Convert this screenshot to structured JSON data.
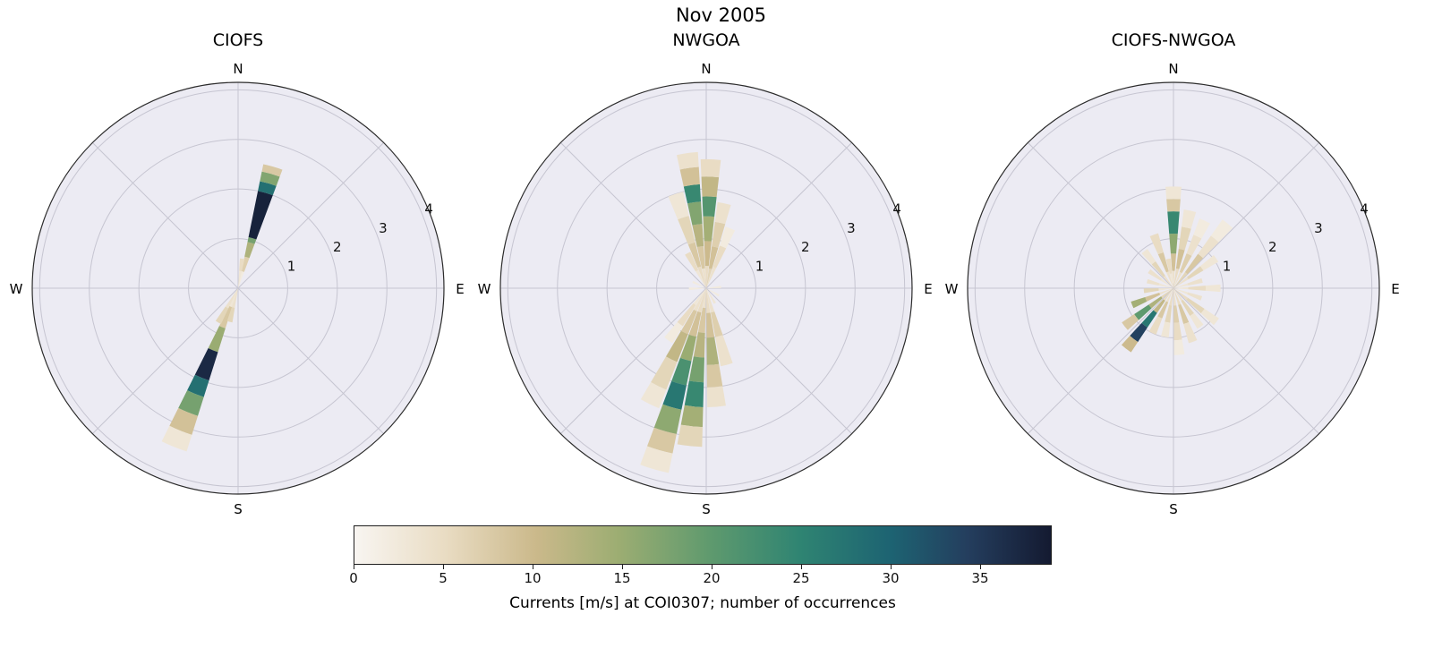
{
  "figure": {
    "title": "Nov 2005"
  },
  "colorbar": {
    "label": "Currents [m/s] at COI0307; number of occurrences",
    "ticks": [
      0,
      5,
      10,
      15,
      20,
      25,
      30,
      35
    ],
    "vmin": 0,
    "vmax": 39,
    "colormap_stops": [
      [
        0.0,
        "#f8f5f1"
      ],
      [
        0.13,
        "#e9dcc3"
      ],
      [
        0.26,
        "#cbb98b"
      ],
      [
        0.38,
        "#9cad72"
      ],
      [
        0.51,
        "#5f9a6e"
      ],
      [
        0.64,
        "#2f8472"
      ],
      [
        0.77,
        "#1d6372"
      ],
      [
        0.88,
        "#243e5e"
      ],
      [
        1.0,
        "#141a31"
      ]
    ]
  },
  "chart_data": [
    {
      "type": "polar-stacked-rose",
      "title": "CIOFS",
      "compass_labels": [
        "N",
        "E",
        "S",
        "W"
      ],
      "radial_ticks": [
        1,
        2,
        3,
        4
      ],
      "rmax": 4.15,
      "rlabel_angle_deg": 67.5,
      "petal_width_deg": 9,
      "petals": [
        {
          "dir": 16,
          "segments": [
            [
              0,
              0.35,
              2
            ],
            [
              0.35,
              0.65,
              7
            ],
            [
              0.65,
              0.95,
              13
            ],
            [
              0.95,
              1.05,
              18
            ],
            [
              1.05,
              2.0,
              38
            ],
            [
              2.0,
              2.2,
              28
            ],
            [
              2.2,
              2.4,
              17
            ],
            [
              2.4,
              2.55,
              8
            ]
          ]
        },
        {
          "dir": 8,
          "segments": [
            [
              0,
              0.35,
              3
            ],
            [
              0.35,
              0.6,
              5
            ]
          ]
        },
        {
          "dir": 202,
          "segments": [
            [
              0,
              0.4,
              3
            ],
            [
              0.4,
              0.85,
              8
            ],
            [
              0.85,
              1.35,
              15
            ],
            [
              1.35,
              1.95,
              37
            ],
            [
              1.95,
              2.3,
              28
            ],
            [
              2.3,
              2.7,
              18
            ],
            [
              2.7,
              3.1,
              9
            ],
            [
              3.1,
              3.45,
              3
            ]
          ]
        },
        {
          "dir": 194,
          "segments": [
            [
              0,
              0.4,
              4
            ],
            [
              0.4,
              0.7,
              6
            ]
          ]
        },
        {
          "dir": 210,
          "segments": [
            [
              0,
              0.45,
              4
            ],
            [
              0.45,
              0.8,
              6
            ]
          ]
        }
      ]
    },
    {
      "type": "polar-stacked-rose",
      "title": "NWGOA",
      "compass_labels": [
        "N",
        "E",
        "S",
        "W"
      ],
      "radial_ticks": [
        1,
        2,
        3,
        4
      ],
      "rmax": 4.15,
      "rlabel_angle_deg": 67.5,
      "petal_width_deg": 9,
      "petals": [
        {
          "dir": 332,
          "segments": [
            [
              0,
              0.4,
              3
            ],
            [
              0.4,
              0.8,
              5
            ]
          ]
        },
        {
          "dir": 342,
          "segments": [
            [
              0,
              0.45,
              5
            ],
            [
              0.45,
              0.95,
              8
            ],
            [
              0.95,
              1.5,
              6
            ],
            [
              1.5,
              2.0,
              3
            ]
          ]
        },
        {
          "dir": 352,
          "segments": [
            [
              0,
              0.4,
              4
            ],
            [
              0.4,
              0.85,
              8
            ],
            [
              0.85,
              1.3,
              12
            ],
            [
              1.3,
              1.75,
              17
            ],
            [
              1.75,
              2.1,
              24
            ],
            [
              2.1,
              2.45,
              9
            ],
            [
              2.45,
              2.75,
              4
            ]
          ]
        },
        {
          "dir": 2,
          "segments": [
            [
              0,
              0.45,
              5
            ],
            [
              0.45,
              0.95,
              10
            ],
            [
              0.95,
              1.45,
              14
            ],
            [
              1.45,
              1.85,
              21
            ],
            [
              1.85,
              2.25,
              11
            ],
            [
              2.25,
              2.6,
              5
            ]
          ]
        },
        {
          "dir": 12,
          "segments": [
            [
              0,
              0.4,
              6
            ],
            [
              0.4,
              0.85,
              9
            ],
            [
              0.85,
              1.35,
              7
            ],
            [
              1.35,
              1.75,
              4
            ]
          ]
        },
        {
          "dir": 22,
          "segments": [
            [
              0,
              0.45,
              4
            ],
            [
              0.45,
              0.9,
              5
            ],
            [
              0.9,
              1.3,
              2
            ]
          ]
        },
        {
          "dir": 85,
          "segments": [
            [
              0,
              0.3,
              2
            ]
          ]
        },
        {
          "dir": 120,
          "segments": [
            [
              0,
              0.3,
              2
            ]
          ]
        },
        {
          "dir": 150,
          "segments": [
            [
              0,
              0.35,
              3
            ]
          ]
        },
        {
          "dir": 165,
          "segments": [
            [
              0,
              0.5,
              4
            ],
            [
              0.5,
              1.0,
              7
            ],
            [
              1.0,
              1.6,
              4
            ]
          ]
        },
        {
          "dir": 175,
          "segments": [
            [
              0,
              0.5,
              5
            ],
            [
              0.5,
              1.0,
              9
            ],
            [
              1.0,
              1.55,
              13
            ],
            [
              1.55,
              2.0,
              8
            ],
            [
              2.0,
              2.4,
              4
            ]
          ]
        },
        {
          "dir": 186,
          "segments": [
            [
              0,
              0.4,
              4
            ],
            [
              0.4,
              0.9,
              8
            ],
            [
              0.9,
              1.4,
              12
            ],
            [
              1.4,
              1.9,
              18
            ],
            [
              1.9,
              2.4,
              24
            ],
            [
              2.4,
              2.8,
              14
            ],
            [
              2.8,
              3.2,
              6
            ]
          ]
        },
        {
          "dir": 196,
          "segments": [
            [
              0,
              0.5,
              5
            ],
            [
              0.5,
              1.0,
              9
            ],
            [
              1.0,
              1.5,
              15
            ],
            [
              1.5,
              2.0,
              22
            ],
            [
              2.0,
              2.5,
              27
            ],
            [
              2.5,
              3.0,
              16
            ],
            [
              3.0,
              3.4,
              8
            ],
            [
              3.4,
              3.8,
              3
            ]
          ]
        },
        {
          "dir": 206,
          "segments": [
            [
              0,
              0.5,
              4
            ],
            [
              0.5,
              1.0,
              8
            ],
            [
              1.0,
              1.6,
              11
            ],
            [
              1.6,
              2.2,
              6
            ],
            [
              2.2,
              2.6,
              3
            ]
          ]
        },
        {
          "dir": 216,
          "segments": [
            [
              0,
              0.4,
              3
            ],
            [
              0.4,
              0.9,
              5
            ],
            [
              0.9,
              1.3,
              2
            ]
          ]
        },
        {
          "dir": 268,
          "segments": [
            [
              0,
              0.35,
              2
            ]
          ]
        },
        {
          "dir": 295,
          "segments": [
            [
              0,
              0.3,
              2
            ]
          ]
        }
      ]
    },
    {
      "type": "polar-stacked-rose",
      "title": "CIOFS-NWGOA",
      "compass_labels": [
        "N",
        "E",
        "S",
        "W"
      ],
      "radial_ticks": [
        1,
        2,
        3,
        4
      ],
      "rmax": 4.15,
      "rlabel_angle_deg": 67.5,
      "petal_width_deg": 9,
      "petals": [
        {
          "dir": 0,
          "segments": [
            [
              0,
              0.35,
              4
            ],
            [
              0.35,
              0.7,
              9
            ],
            [
              0.7,
              1.1,
              16
            ],
            [
              1.1,
              1.55,
              24
            ],
            [
              1.55,
              1.8,
              8
            ],
            [
              1.8,
              2.05,
              3
            ]
          ]
        },
        {
          "dir": 12,
          "segments": [
            [
              0,
              0.4,
              5
            ],
            [
              0.4,
              0.8,
              9
            ],
            [
              0.8,
              1.25,
              6
            ],
            [
              1.25,
              1.6,
              3
            ]
          ]
        },
        {
          "dir": 25,
          "segments": [
            [
              0,
              0.35,
              4
            ],
            [
              0.35,
              0.75,
              7
            ],
            [
              0.75,
              1.15,
              4
            ],
            [
              1.15,
              1.5,
              2
            ]
          ]
        },
        {
          "dir": 40,
          "segments": [
            [
              0,
              0.4,
              6
            ],
            [
              0.4,
              0.85,
              8
            ],
            [
              0.85,
              1.3,
              4
            ],
            [
              1.3,
              1.7,
              2
            ]
          ]
        },
        {
          "dir": 55,
          "segments": [
            [
              0,
              0.35,
              4
            ],
            [
              0.35,
              0.7,
              6
            ],
            [
              0.7,
              1.05,
              3
            ]
          ]
        },
        {
          "dir": 75,
          "segments": [
            [
              0,
              0.3,
              3
            ],
            [
              0.3,
              0.6,
              4
            ]
          ]
        },
        {
          "dir": 90,
          "segments": [
            [
              0,
              0.3,
              3
            ],
            [
              0.3,
              0.65,
              5
            ],
            [
              0.65,
              0.95,
              3
            ]
          ]
        },
        {
          "dir": 110,
          "segments": [
            [
              0,
              0.3,
              3
            ],
            [
              0.3,
              0.6,
              4
            ]
          ]
        },
        {
          "dir": 128,
          "segments": [
            [
              0,
              0.35,
              5
            ],
            [
              0.35,
              0.75,
              6
            ],
            [
              0.75,
              1.1,
              3
            ]
          ]
        },
        {
          "dir": 145,
          "segments": [
            [
              0,
              0.3,
              4
            ],
            [
              0.3,
              0.65,
              6
            ],
            [
              0.65,
              0.95,
              3
            ]
          ]
        },
        {
          "dir": 160,
          "segments": [
            [
              0,
              0.35,
              5
            ],
            [
              0.35,
              0.75,
              8
            ],
            [
              0.75,
              1.15,
              4
            ]
          ]
        },
        {
          "dir": 175,
          "segments": [
            [
              0,
              0.35,
              4
            ],
            [
              0.35,
              0.7,
              7
            ],
            [
              0.7,
              1.05,
              5
            ],
            [
              1.05,
              1.35,
              2
            ]
          ]
        },
        {
          "dir": 190,
          "segments": [
            [
              0,
              0.35,
              5
            ],
            [
              0.35,
              0.7,
              6
            ],
            [
              0.7,
              1.0,
              3
            ]
          ]
        },
        {
          "dir": 205,
          "segments": [
            [
              0,
              0.3,
              4
            ],
            [
              0.3,
              0.65,
              8
            ],
            [
              0.65,
              1.0,
              5
            ]
          ]
        },
        {
          "dir": 218,
          "segments": [
            [
              0,
              0.3,
              5
            ],
            [
              0.3,
              0.6,
              11
            ],
            [
              0.6,
              0.95,
              27
            ],
            [
              0.95,
              1.3,
              34
            ],
            [
              1.3,
              1.55,
              10
            ]
          ]
        },
        {
          "dir": 232,
          "segments": [
            [
              0,
              0.3,
              6
            ],
            [
              0.3,
              0.6,
              13
            ],
            [
              0.6,
              0.95,
              20
            ],
            [
              0.95,
              1.25,
              8
            ]
          ]
        },
        {
          "dir": 248,
          "segments": [
            [
              0,
              0.3,
              4
            ],
            [
              0.3,
              0.6,
              9
            ],
            [
              0.6,
              0.9,
              14
            ]
          ]
        },
        {
          "dir": 265,
          "segments": [
            [
              0,
              0.3,
              3
            ],
            [
              0.3,
              0.6,
              6
            ]
          ]
        },
        {
          "dir": 285,
          "segments": [
            [
              0,
              0.3,
              3
            ],
            [
              0.3,
              0.55,
              4
            ]
          ]
        },
        {
          "dir": 305,
          "segments": [
            [
              0,
              0.3,
              3
            ],
            [
              0.3,
              0.6,
              4
            ]
          ]
        },
        {
          "dir": 322,
          "segments": [
            [
              0,
              0.3,
              4
            ],
            [
              0.3,
              0.65,
              6
            ],
            [
              0.65,
              0.95,
              3
            ]
          ]
        },
        {
          "dir": 340,
          "segments": [
            [
              0,
              0.35,
              4
            ],
            [
              0.35,
              0.75,
              8
            ],
            [
              0.75,
              1.15,
              5
            ]
          ]
        },
        {
          "dir": 350,
          "segments": [
            [
              0,
              0.3,
              3
            ],
            [
              0.3,
              0.6,
              5
            ]
          ]
        }
      ]
    }
  ]
}
